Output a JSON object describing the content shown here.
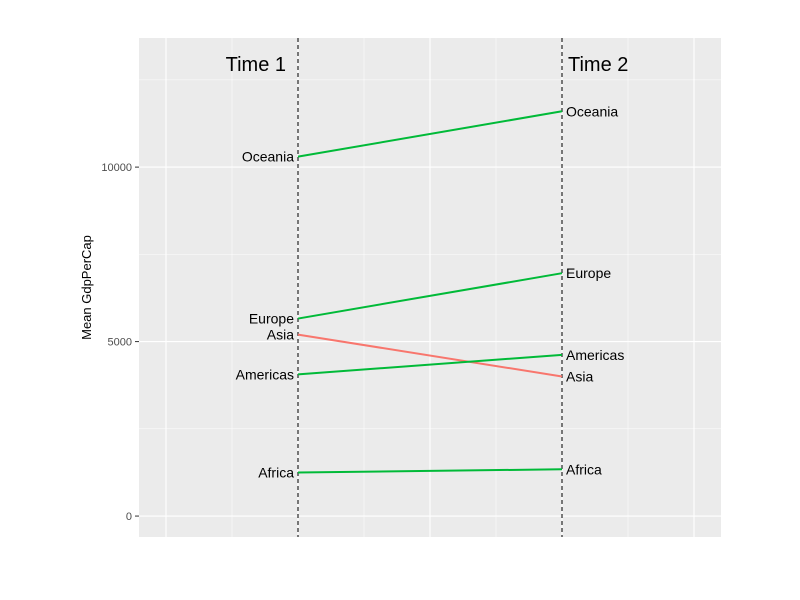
{
  "chart_data": {
    "type": "line",
    "title": "",
    "xlabel": "",
    "ylabel": "Mean GdpPerCap",
    "x_categories": [
      "Time 1",
      "Time 2"
    ],
    "yticks": [
      0,
      5000,
      10000
    ],
    "ylim": [
      -600,
      13700
    ],
    "grid": true,
    "legend": "none",
    "colors": {
      "up": "#00ba38",
      "down": "#f8766d",
      "panel": "#ebebeb",
      "grid": "#ffffff"
    },
    "series": [
      {
        "name": "Oceania",
        "values": [
          10300,
          11600
        ],
        "direction": "up"
      },
      {
        "name": "Europe",
        "values": [
          5660,
          6960
        ],
        "direction": "up"
      },
      {
        "name": "Asia",
        "values": [
          5200,
          4000
        ],
        "direction": "down"
      },
      {
        "name": "Americas",
        "values": [
          4060,
          4620
        ],
        "direction": "up"
      },
      {
        "name": "Africa",
        "values": [
          1250,
          1340
        ],
        "direction": "up"
      }
    ]
  }
}
